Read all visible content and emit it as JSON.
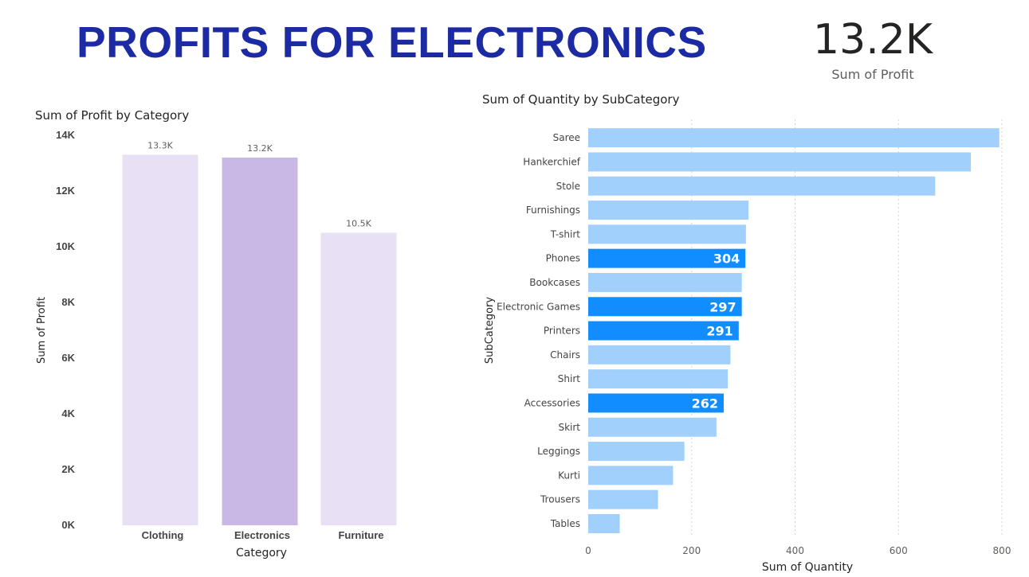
{
  "header": {
    "title": "PROFITS FOR ELECTRONICS",
    "kpi_value": "13.2K",
    "kpi_label": "Sum of Profit"
  },
  "colors": {
    "title": "#1c2aa3",
    "profit_bar": "#e8e1f5",
    "profit_bar_selected": "#c9b8e6",
    "qty_bar": "#a2d0fd",
    "qty_bar_highlight": "#118dff"
  },
  "chart_data": [
    {
      "type": "bar",
      "title": "Sum of Profit by Category",
      "xlabel": "Category",
      "ylabel": "Sum of Profit",
      "categories": [
        "Clothing",
        "Electronics",
        "Furniture"
      ],
      "values": [
        13300,
        13200,
        10500
      ],
      "data_labels": [
        "13.3K",
        "13.2K",
        "10.5K"
      ],
      "selected": "Electronics",
      "ylim": [
        0,
        14000
      ],
      "yticks": [
        0,
        2000,
        4000,
        6000,
        8000,
        10000,
        12000,
        14000
      ],
      "ytick_labels": [
        "0K",
        "2K",
        "4K",
        "6K",
        "8K",
        "10K",
        "12K",
        "14K"
      ],
      "grid": false
    },
    {
      "type": "bar",
      "orientation": "horizontal",
      "title": "Sum of Quantity by SubCategory",
      "xlabel": "Sum of Quantity",
      "ylabel": "SubCategory",
      "categories": [
        "Saree",
        "Hankerchief",
        "Stole",
        "Furnishings",
        "T-shirt",
        "Phones",
        "Bookcases",
        "Electronic Games",
        "Printers",
        "Chairs",
        "Shirt",
        "Accessories",
        "Skirt",
        "Leggings",
        "Kurti",
        "Trousers",
        "Tables"
      ],
      "values": [
        795,
        740,
        671,
        310,
        305,
        304,
        297,
        297,
        291,
        275,
        270,
        262,
        248,
        186,
        164,
        135,
        61
      ],
      "highlighted": [
        "Phones",
        "Electronic Games",
        "Printers",
        "Accessories"
      ],
      "highlight_labels": [
        "304",
        "297",
        "291",
        "262"
      ],
      "xlim": [
        0,
        800
      ],
      "xticks": [
        0,
        200,
        400,
        600,
        800
      ],
      "xtick_labels": [
        "0",
        "200",
        "400",
        "600",
        "800"
      ],
      "grid": true
    }
  ]
}
